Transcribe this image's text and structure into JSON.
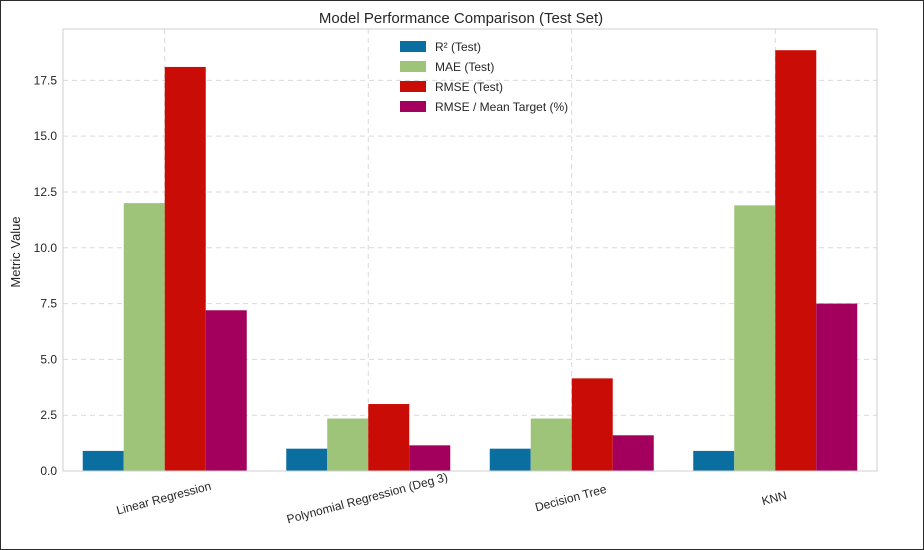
{
  "chart_data": {
    "type": "bar",
    "title": "Model Performance Comparison (Test Set)",
    "xlabel": "",
    "ylabel": "Metric Value",
    "categories": [
      "Linear Regression",
      "Polynomial Regression (Deg 3)",
      "Decision Tree",
      "KNN"
    ],
    "series": [
      {
        "name": "R² (Test)",
        "color": "#0a6fa0",
        "values": [
          0.9,
          1.0,
          1.0,
          0.9
        ]
      },
      {
        "name": "MAE (Test)",
        "color": "#9ec47a",
        "values": [
          12.0,
          2.35,
          2.35,
          11.9
        ]
      },
      {
        "name": "RMSE (Test)",
        "color": "#c90d06",
        "values": [
          18.1,
          3.0,
          4.15,
          18.85
        ]
      },
      {
        "name": "RMSE / Mean Target (%)",
        "color": "#a2005c",
        "values": [
          7.2,
          1.15,
          1.6,
          7.5
        ]
      }
    ],
    "ylim": [
      0,
      19.8
    ],
    "yticks": [
      "0.0",
      "2.5",
      "5.0",
      "7.5",
      "10.0",
      "12.5",
      "15.0",
      "17.5"
    ],
    "grid": true,
    "legend_position": "top-center"
  }
}
